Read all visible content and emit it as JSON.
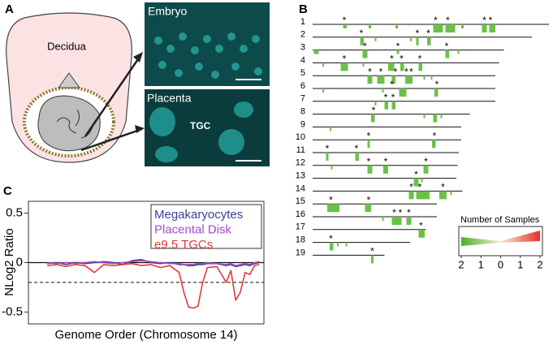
{
  "panel_a": {
    "label": "A",
    "decidua": "Decidua",
    "embryo": "Embryo",
    "placenta": "Placenta",
    "tgc": "TGC"
  },
  "panel_b": {
    "label": "B",
    "star": "*",
    "color": "#6cc04a",
    "chromosomes": [
      {
        "name": "1",
        "length": 194,
        "blocks": [
          [
            25,
            28,
            1
          ],
          [
            46,
            48,
            1
          ],
          [
            68,
            70,
            1
          ],
          [
            99,
            107,
            2
          ],
          [
            109,
            117,
            2
          ],
          [
            122,
            124,
            1
          ],
          [
            139,
            143,
            2
          ],
          [
            145,
            150,
            2
          ]
        ],
        "stars": [
          26,
          101,
          111,
          141,
          146
        ]
      },
      {
        "name": "2",
        "length": 180,
        "blocks": [
          [
            39,
            42,
            2
          ],
          [
            51,
            52,
            1
          ],
          [
            80,
            81,
            1
          ],
          [
            85,
            87,
            2
          ],
          [
            94,
            97,
            2
          ]
        ],
        "stars": [
          40,
          86,
          95
        ]
      },
      {
        "name": "3",
        "length": 157,
        "blocks": [
          [
            1,
            5,
            1
          ],
          [
            41,
            45,
            2
          ],
          [
            69,
            71,
            1
          ],
          [
            109,
            112,
            2
          ],
          [
            119,
            120,
            1
          ]
        ],
        "stars": [
          43,
          70,
          110
        ]
      },
      {
        "name": "4",
        "length": 153,
        "blocks": [
          [
            8,
            9,
            1
          ],
          [
            23,
            29,
            2
          ],
          [
            41,
            42,
            1
          ],
          [
            62,
            67,
            2
          ],
          [
            72,
            75,
            2
          ],
          [
            87,
            90,
            2
          ]
        ],
        "stars": [
          26,
          65,
          73,
          88
        ]
      },
      {
        "name": "5",
        "length": 150,
        "blocks": [
          [
            45,
            49,
            2
          ],
          [
            53,
            59,
            2
          ],
          [
            65,
            68,
            2
          ],
          [
            76,
            82,
            2
          ],
          [
            91,
            92,
            1
          ],
          [
            97,
            98,
            1
          ]
        ],
        "stars": [
          47,
          56,
          68,
          77,
          81
        ]
      },
      {
        "name": "6",
        "length": 150,
        "blocks": [
          [
            8,
            9,
            1
          ],
          [
            57,
            58,
            1
          ],
          [
            71,
            77,
            2
          ],
          [
            100,
            103,
            2
          ]
        ],
        "stars": [
          65,
          102
        ]
      },
      {
        "name": "7",
        "length": 150,
        "blocks": [
          [
            51,
            52,
            1
          ],
          [
            59,
            62,
            2
          ],
          [
            65,
            68,
            2
          ]
        ],
        "stars": [
          60,
          66
        ]
      },
      {
        "name": "8",
        "length": 129,
        "blocks": [
          [
            48,
            51,
            2
          ],
          [
            91,
            92,
            1
          ],
          [
            99,
            102,
            2
          ],
          [
            105,
            106,
            1
          ]
        ],
        "stars": [
          50
        ]
      },
      {
        "name": "9",
        "length": 122,
        "blocks": [
          [
            14,
            15,
            1
          ]
        ],
        "stars": []
      },
      {
        "name": "10",
        "length": 122,
        "blocks": [
          [
            45,
            47,
            2
          ],
          [
            98,
            101,
            2
          ]
        ],
        "stars": [
          46,
          100
        ]
      },
      {
        "name": "11",
        "length": 120,
        "blocks": [
          [
            11,
            13,
            2
          ],
          [
            35,
            38,
            2
          ]
        ],
        "stars": [
          12,
          36
        ]
      },
      {
        "name": "12",
        "length": 119,
        "blocks": [
          [
            15,
            16,
            1
          ],
          [
            45,
            49,
            2
          ],
          [
            58,
            62,
            2
          ],
          [
            91,
            95,
            2
          ]
        ],
        "stars": [
          46,
          60,
          93
        ]
      },
      {
        "name": "13",
        "length": 118,
        "blocks": [
          [
            83,
            87,
            2
          ],
          [
            89,
            90,
            1
          ]
        ],
        "stars": [
          85
        ]
      },
      {
        "name": "14",
        "length": 123,
        "blocks": [
          [
            79,
            83,
            2
          ],
          [
            85,
            96,
            2
          ],
          [
            104,
            110,
            2
          ],
          [
            113,
            114,
            1
          ]
        ],
        "stars": [
          81,
          88,
          107
        ]
      },
      {
        "name": "15",
        "length": 102,
        "blocks": [
          [
            12,
            22,
            2
          ],
          [
            43,
            48,
            2
          ]
        ],
        "stars": [
          15,
          46
        ]
      },
      {
        "name": "16",
        "length": 102,
        "blocks": [
          [
            57,
            58,
            1
          ],
          [
            65,
            73,
            2
          ],
          [
            77,
            81,
            2
          ]
        ],
        "stars": [
          67,
          72,
          79
        ]
      },
      {
        "name": "17",
        "length": 93,
        "blocks": [
          [
            87,
            92,
            2
          ]
        ],
        "stars": [
          89
        ]
      },
      {
        "name": "18",
        "length": 80,
        "blocks": [
          [
            14,
            17,
            2
          ],
          [
            20,
            21,
            1
          ],
          [
            27,
            28,
            1
          ]
        ],
        "stars": [
          15
        ]
      },
      {
        "name": "19",
        "length": 59,
        "blocks": [
          [
            48,
            50,
            2
          ]
        ],
        "stars": [
          49
        ]
      }
    ],
    "legend": {
      "title": "Number of Samples",
      "colors": [
        "#4caf2e",
        "#f3efcf",
        "#e8302a"
      ],
      "lim": [
        -2,
        2
      ],
      "ticks": [
        {
          "value": -2,
          "label": "2"
        },
        {
          "value": -1,
          "label": "1"
        },
        0,
        1,
        2
      ]
    }
  },
  "panel_c_label": "C",
  "chart_data": {
    "type": "line",
    "y_label": "NLog2 Ratio",
    "x_label": "Genome Order (Chromosome 14)",
    "xlim": [
      0,
      100
    ],
    "ylim": [
      -0.62,
      0.62
    ],
    "yticks": [
      0.5,
      0,
      -0.5
    ],
    "hline": -0.2,
    "x": [
      8,
      12,
      16,
      20,
      24,
      28,
      32,
      36,
      40,
      44,
      48,
      52,
      56,
      60,
      64,
      66,
      68,
      70,
      72,
      74,
      76,
      80,
      84,
      86,
      88,
      90,
      92,
      94,
      96,
      98
    ],
    "series": [
      {
        "name": "Megakaryocytes",
        "color": "#3a3f9a",
        "values": [
          -0.01,
          0,
          -0.02,
          0,
          -0.01,
          0,
          0.01,
          0,
          -0.02,
          0.02,
          0.03,
          0,
          -0.01,
          0,
          -0.02,
          -0.02,
          -0.03,
          -0.03,
          -0.02,
          -0.02,
          -0.01,
          -0.01,
          -0.03,
          -0.02,
          -0.04,
          -0.03,
          -0.02,
          -0.03,
          -0.01,
          0
        ]
      },
      {
        "name": "Placental Disk",
        "color": "#a64cc4",
        "values": [
          0,
          -0.01,
          0,
          -0.01,
          0,
          0.01,
          0,
          -0.01,
          0,
          0.01,
          0.02,
          0.01,
          0,
          -0.01,
          -0.01,
          -0.02,
          -0.02,
          -0.02,
          -0.01,
          -0.01,
          0,
          -0.01,
          -0.02,
          -0.01,
          -0.03,
          -0.02,
          -0.01,
          -0.02,
          0,
          0.01
        ]
      },
      {
        "name": "e9.5 TGCs",
        "color": "#e8373a",
        "values": [
          -0.03,
          -0.02,
          -0.04,
          -0.02,
          -0.03,
          -0.1,
          -0.02,
          -0.03,
          -0.02,
          -0.01,
          -0.03,
          -0.02,
          -0.05,
          -0.03,
          -0.1,
          -0.3,
          -0.45,
          -0.46,
          -0.44,
          -0.2,
          -0.05,
          -0.04,
          -0.2,
          -0.08,
          -0.38,
          -0.3,
          -0.1,
          -0.12,
          -0.03,
          -0.02
        ]
      }
    ]
  }
}
